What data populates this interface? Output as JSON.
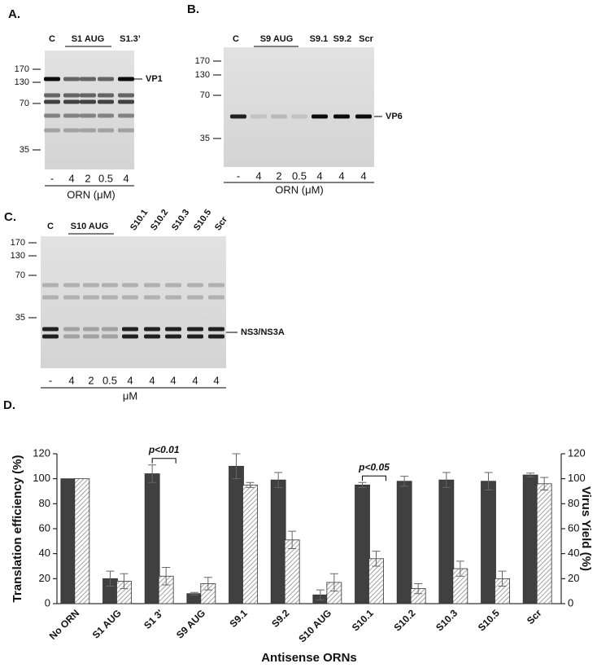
{
  "panels": {
    "a": {
      "label": "A.",
      "lanes": [
        "C",
        "S1 AUG",
        "S1.3’"
      ],
      "markers": [
        "170",
        "130",
        "70",
        "35"
      ],
      "band": "VP1",
      "conc": [
        "-",
        "4",
        "2",
        "0.5",
        "4"
      ],
      "unit": "ORN (μM)"
    },
    "b": {
      "label": "B.",
      "lanes": [
        "C",
        "S9 AUG",
        "S9.1",
        "S9.2",
        "Scr"
      ],
      "markers": [
        "170",
        "130",
        "70",
        "35"
      ],
      "band": "VP6",
      "conc": [
        "-",
        "4",
        "2",
        "0.5",
        "4",
        "4",
        "4"
      ],
      "unit": "ORN (μM)"
    },
    "c": {
      "label": "C.",
      "lanes": [
        "C",
        "S10 AUG",
        "S10.1",
        "S10.2",
        "S10.3",
        "S10.5",
        "Scr"
      ],
      "markers": [
        "170",
        "130",
        "70",
        "35"
      ],
      "band": "NS3/NS3A",
      "conc": [
        "-",
        "4",
        "2",
        "0.5",
        "4",
        "4",
        "4",
        "4",
        "4"
      ],
      "unit": "μM"
    }
  },
  "chart_data": {
    "type": "bar",
    "panel_label": "D.",
    "y_label": "Translation efficiency (%)",
    "y2_label": "Virus Yield (%)",
    "x_label": "Antisense ORNs",
    "categories": [
      "No ORN",
      "S1 AUG",
      "S1 3'",
      "S9 AUG",
      "S9.1",
      "S9.2",
      "S10 AUG",
      "S10.1",
      "S10.2",
      "S10.3",
      "S10.5",
      "Scr"
    ],
    "series": [
      {
        "color": "#404040",
        "values": [
          100,
          20,
          104,
          8,
          110,
          99,
          7,
          95,
          98,
          99,
          98,
          103
        ],
        "errors": [
          0,
          6,
          7,
          1,
          10,
          6,
          4,
          2,
          4,
          6,
          7,
          1.5
        ]
      },
      {
        "color": "hatch",
        "axis": "y2",
        "values": [
          100,
          18,
          22,
          16,
          95,
          51,
          17,
          36,
          12,
          28,
          20,
          96
        ],
        "errors": [
          0,
          6,
          7,
          5,
          2,
          7,
          7,
          6,
          4,
          6,
          6,
          5
        ]
      }
    ],
    "ylim": [
      0,
      120
    ],
    "yticks": [
      0,
      20,
      40,
      60,
      80,
      100,
      120
    ],
    "y2lim": [
      0,
      120
    ],
    "y2ticks": [
      0,
      20,
      40,
      60,
      80,
      100,
      120
    ],
    "annotations": [
      {
        "text": "p<0.01",
        "category": 2
      },
      {
        "text": "p<0.05",
        "category": 7
      }
    ]
  }
}
